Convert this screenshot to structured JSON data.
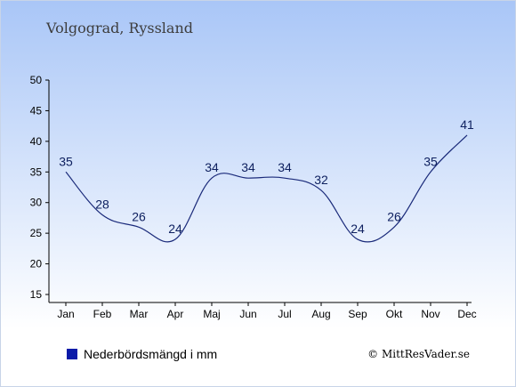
{
  "chart_data": {
    "type": "line",
    "title": "Volgograd, Ryssland",
    "categories": [
      "Jan",
      "Feb",
      "Mar",
      "Apr",
      "Maj",
      "Jun",
      "Jul",
      "Aug",
      "Sep",
      "Okt",
      "Nov",
      "Dec"
    ],
    "series": [
      {
        "name": "Nederbördsmängd i mm",
        "values": [
          35,
          28,
          26,
          24,
          34,
          34,
          34,
          32,
          24,
          26,
          35,
          41
        ]
      }
    ],
    "ylim": [
      15,
      50
    ],
    "yticks": [
      15,
      20,
      25,
      30,
      35,
      40,
      45,
      50
    ],
    "grid": false,
    "legend_position": "bottom-left",
    "colors": {
      "line": "#1a2a7a",
      "legend_swatch": "#0a1aa8",
      "label": "#0f2160"
    }
  },
  "credit": "© MittResVader.se"
}
